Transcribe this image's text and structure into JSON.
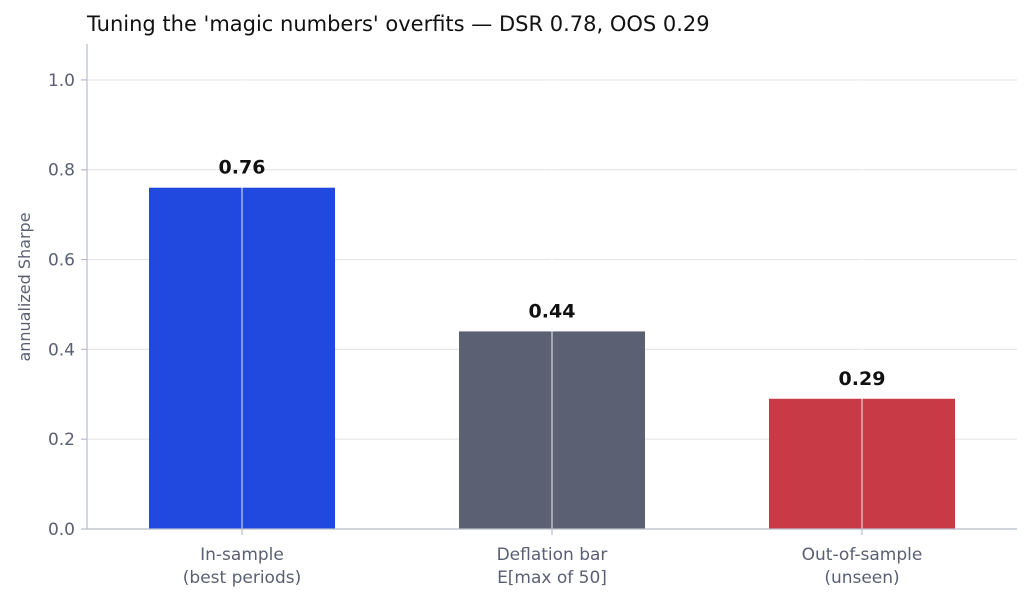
{
  "chart_data": {
    "type": "bar",
    "title": "Tuning the 'magic numbers' overfits — DSR 0.78, OOS 0.29",
    "ylabel": "annualized Sharpe",
    "xlabel": "",
    "ylim": [
      0,
      1.08
    ],
    "yticks": [
      0.0,
      0.2,
      0.4,
      0.6,
      0.8,
      1.0
    ],
    "ytick_labels": [
      "0.0",
      "0.2",
      "0.4",
      "0.6",
      "0.8",
      "1.0"
    ],
    "grid": true,
    "categories": [
      [
        "In-sample",
        "(best periods)"
      ],
      [
        "Deflation bar",
        "E[max of 50]"
      ],
      [
        "Out-of-sample",
        "(unseen)"
      ]
    ],
    "values": [
      0.76,
      0.44,
      0.29
    ],
    "value_labels": [
      "0.76",
      "0.44",
      "0.29"
    ],
    "colors": [
      "#2149e0",
      "#5b6173",
      "#c83a46"
    ]
  }
}
